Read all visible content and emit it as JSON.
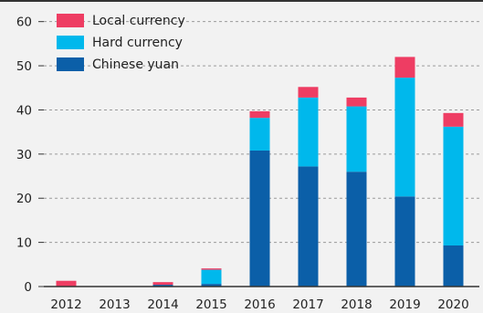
{
  "chart_data": {
    "type": "bar",
    "stacked": true,
    "categories": [
      "2012",
      "2013",
      "2014",
      "2015",
      "2016",
      "2017",
      "2018",
      "2019",
      "2020"
    ],
    "series": [
      {
        "name": "Chinese yuan",
        "color": "#0b5fa8",
        "values": [
          0,
          0,
          0.4,
          0.6,
          30.8,
          27.2,
          26.0,
          20.4,
          9.3
        ]
      },
      {
        "name": "Hard currency",
        "color": "#00b8ec",
        "values": [
          0,
          0,
          0,
          3.2,
          7.4,
          15.6,
          14.8,
          26.9,
          26.9
        ]
      },
      {
        "name": "Local currency",
        "color": "#ee3d63",
        "values": [
          1.3,
          0,
          0.6,
          0.3,
          1.5,
          2.4,
          2.0,
          4.7,
          3.1
        ]
      }
    ],
    "ylim": [
      0,
      62
    ],
    "yticks": [
      0,
      10,
      20,
      30,
      40,
      50,
      60
    ],
    "grid": true,
    "legend_position": "top-left",
    "legend_order": [
      "Local currency",
      "Hard currency",
      "Chinese yuan"
    ]
  }
}
